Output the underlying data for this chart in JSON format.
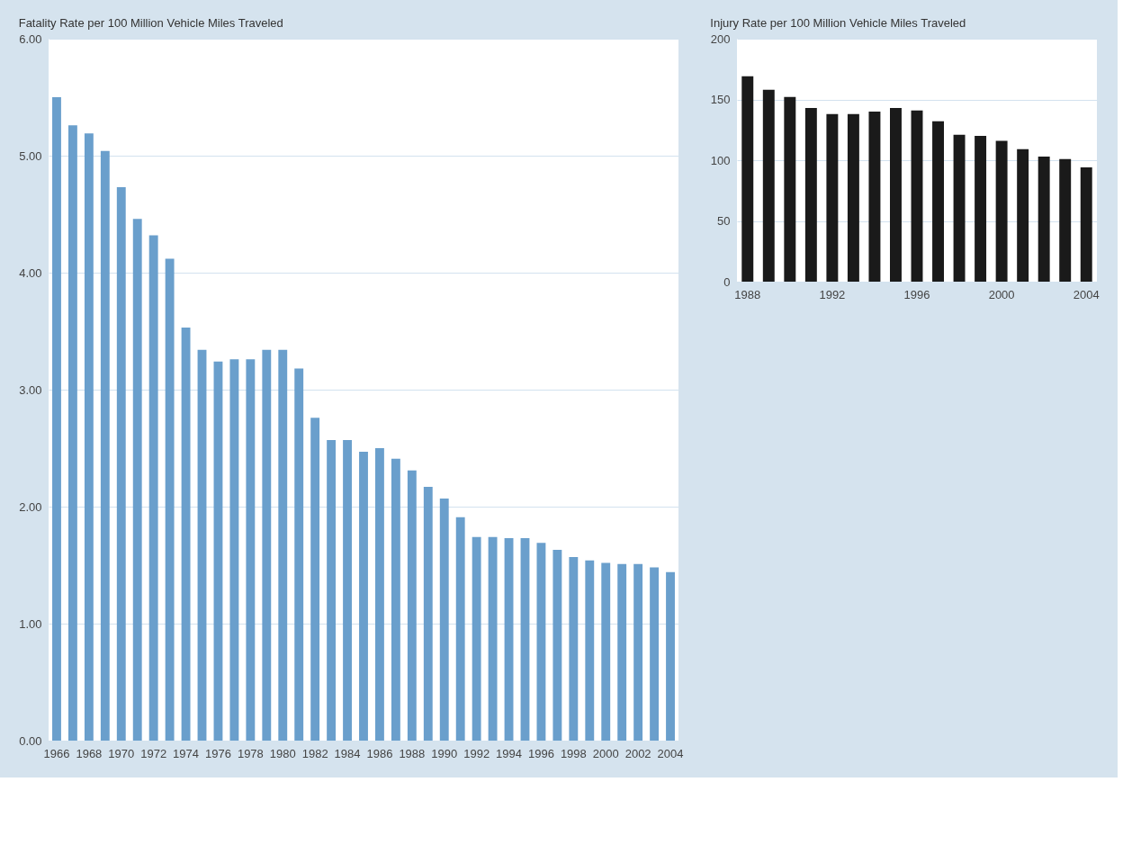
{
  "chart_data": [
    {
      "type": "bar",
      "title": "Fatality Rate per 100 Million Vehicle Miles Traveled",
      "categories": [
        "1966",
        null,
        "1968",
        null,
        "1970",
        null,
        "1972",
        null,
        "1974",
        null,
        "1976",
        null,
        "1978",
        null,
        "1980",
        null,
        "1982",
        null,
        "1984",
        null,
        "1986",
        null,
        "1988",
        null,
        "1990",
        null,
        "1992",
        null,
        "1994",
        null,
        "1996",
        null,
        "1998",
        null,
        "2000",
        null,
        "2002",
        null,
        "2004"
      ],
      "values": [
        5.5,
        5.26,
        5.19,
        5.04,
        4.73,
        4.46,
        4.32,
        4.12,
        3.53,
        3.34,
        3.24,
        3.26,
        3.26,
        3.34,
        3.34,
        3.18,
        2.76,
        2.57,
        2.57,
        2.47,
        2.5,
        2.41,
        2.31,
        2.17,
        2.07,
        1.91,
        1.74,
        1.74,
        1.73,
        1.73,
        1.69,
        1.63,
        1.57,
        1.54,
        1.52,
        1.51,
        1.51,
        1.48,
        1.44
      ],
      "color": "#6a9fcc",
      "ylim": [
        0,
        6
      ],
      "yticks": [
        {
          "value": 0,
          "label": "0.00"
        },
        {
          "value": 1,
          "label": "1.00"
        },
        {
          "value": 2,
          "label": "2.00"
        },
        {
          "value": 3,
          "label": "3.00"
        },
        {
          "value": 4,
          "label": "4.00"
        },
        {
          "value": 5,
          "label": "5.00"
        },
        {
          "value": 6,
          "label": "6.00"
        }
      ],
      "grid": "y"
    },
    {
      "type": "bar",
      "title": "Injury Rate per 100 Million Vehicle Miles Traveled",
      "categories": [
        "1988",
        null,
        null,
        null,
        "1992",
        null,
        null,
        null,
        "1996",
        null,
        null,
        null,
        "2000",
        null,
        null,
        null,
        "2004"
      ],
      "values": [
        169,
        158,
        152,
        143,
        138,
        138,
        140,
        143,
        141,
        132,
        121,
        120,
        116,
        109,
        103,
        101,
        94
      ],
      "color": "#1a1a1a",
      "ylim": [
        0,
        200
      ],
      "yticks": [
        0,
        50,
        100,
        150,
        200
      ],
      "grid": "y"
    }
  ]
}
